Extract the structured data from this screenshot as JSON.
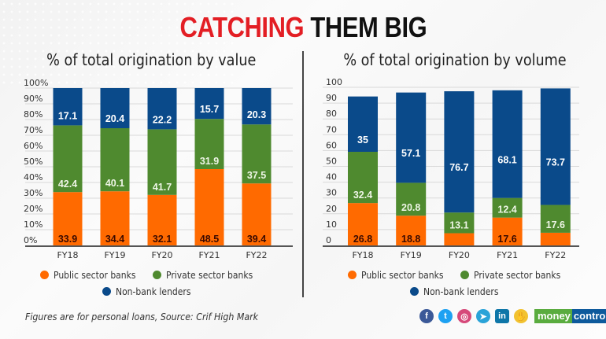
{
  "title": {
    "part1": "CATCHING",
    "part2": "THEM BIG"
  },
  "colors": {
    "public": "#ff6a00",
    "private": "#4f8a2f",
    "nonbank": "#0a4a8a",
    "title_red": "#e31e24",
    "grid": "#d9d9d9",
    "axis": "#555555"
  },
  "legend": {
    "public": "Public sector banks",
    "private": "Private sector banks",
    "nonbank": "Non-bank lenders"
  },
  "chart_data": [
    {
      "type": "bar",
      "stacked": true,
      "title": "% of total origination by value",
      "xlabel": "",
      "ylabel": "",
      "ylim": [
        0,
        100
      ],
      "yticks": [
        "0%",
        "10%",
        "20%",
        "30%",
        "40%",
        "50%",
        "60%",
        "70%",
        "80%",
        "90%",
        "100%"
      ],
      "grid": true,
      "legend_position": "bottom",
      "normalized_to_100": true,
      "categories": [
        "FY18",
        "FY19",
        "FY20",
        "FY21",
        "FY22"
      ],
      "series": [
        {
          "name": "Public sector banks",
          "key": "public",
          "values": [
            33.9,
            34.4,
            32.1,
            48.5,
            39.4
          ],
          "labels": [
            "33.9",
            "34.4",
            "32.1",
            "48.5",
            "39.4"
          ]
        },
        {
          "name": "Private sector banks",
          "key": "private",
          "values": [
            42.4,
            40.1,
            41.7,
            31.9,
            37.5
          ],
          "labels": [
            "42.4",
            "40.1",
            "41.7",
            "31.9",
            "37.5"
          ]
        },
        {
          "name": "Non-bank lenders",
          "key": "nonbank",
          "values": [
            17.1,
            20.4,
            22.2,
            15.7,
            20.3
          ],
          "labels": [
            "17.1",
            "20.4",
            "22.2",
            "15.7",
            "20.3"
          ]
        }
      ]
    },
    {
      "type": "bar",
      "stacked": true,
      "title": "% of total origination by volume",
      "xlabel": "",
      "ylabel": "",
      "ylim": [
        0,
        100
      ],
      "yticks": [
        "0",
        "10",
        "20",
        "30",
        "40",
        "50",
        "60",
        "70",
        "80",
        "90",
        "100"
      ],
      "grid": true,
      "legend_position": "bottom",
      "normalized_to_100": false,
      "categories": [
        "FY18",
        "FY19",
        "FY20",
        "FY21",
        "FY22"
      ],
      "series": [
        {
          "name": "Public sector banks",
          "key": "public",
          "values": [
            26.8,
            18.8,
            7.7,
            17.6,
            8.0
          ],
          "labels": [
            "26.8",
            "18.8",
            null,
            "17.6",
            null
          ]
        },
        {
          "name": "Private sector banks",
          "key": "private",
          "values": [
            32.4,
            20.8,
            13.1,
            12.4,
            17.6
          ],
          "labels": [
            "32.4",
            "20.8",
            "13.1",
            "12.4",
            "17.6"
          ]
        },
        {
          "name": "Non-bank lenders",
          "key": "nonbank",
          "values": [
            35,
            57.1,
            76.7,
            68.1,
            73.7
          ],
          "labels": [
            "35",
            "57.1",
            "76.7",
            "68.1",
            "73.7"
          ]
        }
      ]
    }
  ],
  "footnote": "Figures are for personal loans, Source: Crif High Mark",
  "social": [
    {
      "name": "facebook",
      "glyph": "f",
      "color": "#3b5998"
    },
    {
      "name": "twitter",
      "glyph": "t",
      "color": "#1da1f2"
    },
    {
      "name": "instagram",
      "glyph": "◎",
      "color": "#d6497a"
    },
    {
      "name": "telegram",
      "glyph": "➤",
      "color": "#2aa3d8"
    },
    {
      "name": "linkedin",
      "glyph": "in",
      "color": "#0e76a8"
    },
    {
      "name": "koo",
      "glyph": "✋",
      "color": "#f2c230"
    }
  ],
  "brand": {
    "part1": "money",
    "part2": "control"
  }
}
